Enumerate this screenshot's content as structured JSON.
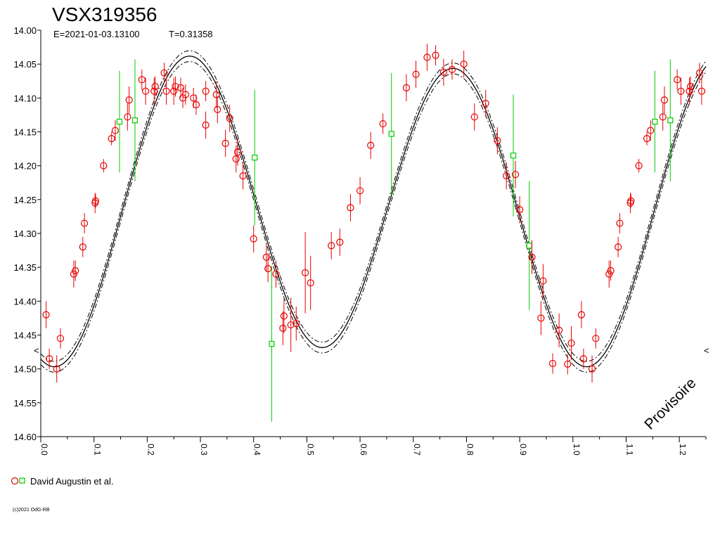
{
  "chart_data": {
    "type": "scatter",
    "title": "VSX319356",
    "epoch_label": "E=2021-01-03.13100",
    "period_label": "T=0.31358",
    "xlabel": "",
    "ylabel": "",
    "xlim": [
      0,
      1.25
    ],
    "ylim": [
      14.0,
      14.6
    ],
    "y_inverted": true,
    "grid": false,
    "x_ticks": [
      "0.0",
      "0.1",
      "0.2",
      "0.3",
      "0.4",
      "0.5",
      "0.6",
      "0.7",
      "0.8",
      "0.9",
      "1.0",
      "1.1",
      "1.2"
    ],
    "y_ticks": [
      "14.00",
      "14.05",
      "14.10",
      "14.15",
      "14.20",
      "14.25",
      "14.30",
      "14.35",
      "14.40",
      "14.45",
      "14.50",
      "14.55",
      "14.60"
    ],
    "legend": {
      "label": "David Augustin et al.",
      "placement": "bottom-left"
    },
    "annotation": "Provisoire",
    "copyright": "(c)2021 OdG-RB",
    "edge_markers": [
      "<",
      "<"
    ],
    "colors": {
      "red_series": "#e60000",
      "green_series": "#00cc00",
      "fit": "#000000"
    },
    "fit_model": {
      "mean": 14.265,
      "cos1": 0.0155,
      "sin1": -0.0065,
      "cos2": 0.205,
      "sin2": 0.073
    },
    "series": [
      {
        "marker": "circle",
        "color": "#e60000",
        "points": [
          [
            0.01,
            14.42,
            0.02
          ],
          [
            0.016,
            14.485,
            0.015
          ],
          [
            0.03,
            14.5,
            0.02
          ],
          [
            0.037,
            14.455,
            0.015
          ],
          [
            0.062,
            14.36,
            0.02
          ],
          [
            0.065,
            14.355,
            0.015
          ],
          [
            0.079,
            14.32,
            0.015
          ],
          [
            0.082,
            14.285,
            0.015
          ],
          [
            0.102,
            14.255,
            0.015
          ],
          [
            0.103,
            14.252,
            0.01
          ],
          [
            0.118,
            14.2,
            0.01
          ],
          [
            0.133,
            14.16,
            0.01
          ],
          [
            0.14,
            14.148,
            0.015
          ],
          [
            0.163,
            14.128,
            0.02
          ],
          [
            0.166,
            14.103,
            0.02
          ],
          [
            0.19,
            14.073,
            0.015
          ],
          [
            0.197,
            14.09,
            0.02
          ],
          [
            0.213,
            14.09,
            0.02
          ],
          [
            0.215,
            14.083,
            0.015
          ],
          [
            0.232,
            14.063,
            0.015
          ],
          [
            0.236,
            14.09,
            0.02
          ],
          [
            0.25,
            14.09,
            0.02
          ],
          [
            0.253,
            14.083,
            0.015
          ],
          [
            0.263,
            14.085,
            0.015
          ],
          [
            0.267,
            14.1,
            0.015
          ],
          [
            0.272,
            14.095,
            0.015
          ],
          [
            0.287,
            14.1,
            0.015
          ],
          [
            0.292,
            14.11,
            0.015
          ],
          [
            0.31,
            14.14,
            0.02
          ],
          [
            0.31,
            14.09,
            0.015
          ],
          [
            0.33,
            14.095,
            0.02
          ],
          [
            0.332,
            14.117,
            0.02
          ],
          [
            0.347,
            14.167,
            0.02
          ],
          [
            0.355,
            14.13,
            0.02
          ],
          [
            0.367,
            14.19,
            0.02
          ],
          [
            0.37,
            14.18,
            0.02
          ],
          [
            0.38,
            14.215,
            0.02
          ],
          [
            0.4,
            14.308,
            0.02
          ],
          [
            0.424,
            14.335,
            0.02
          ],
          [
            0.427,
            14.352,
            0.02
          ],
          [
            0.442,
            14.36,
            0.02
          ],
          [
            0.455,
            14.44,
            0.025
          ],
          [
            0.457,
            14.422,
            0.025
          ],
          [
            0.47,
            14.435,
            0.04
          ],
          [
            0.48,
            14.433,
            0.025
          ],
          [
            0.497,
            14.358,
            0.06
          ],
          [
            0.507,
            14.373,
            0.04
          ],
          [
            0.546,
            14.318,
            0.02
          ],
          [
            0.562,
            14.313,
            0.02
          ],
          [
            0.582,
            14.262,
            0.02
          ],
          [
            0.6,
            14.237,
            0.02
          ],
          [
            0.62,
            14.17,
            0.02
          ],
          [
            0.643,
            14.138,
            0.015
          ],
          [
            0.687,
            14.085,
            0.02
          ],
          [
            0.705,
            14.065,
            0.02
          ],
          [
            0.726,
            14.04,
            0.02
          ],
          [
            0.742,
            14.037,
            0.015
          ],
          [
            0.757,
            14.062,
            0.02
          ],
          [
            0.773,
            14.058,
            0.015
          ],
          [
            0.795,
            14.05,
            0.02
          ],
          [
            0.815,
            14.128,
            0.02
          ],
          [
            0.836,
            14.108,
            0.02
          ],
          [
            0.858,
            14.163,
            0.02
          ],
          [
            0.875,
            14.215,
            0.02
          ],
          [
            0.892,
            14.213,
            0.02
          ],
          [
            0.9,
            14.265,
            0.02
          ],
          [
            0.923,
            14.335,
            0.025
          ],
          [
            0.94,
            14.425,
            0.025
          ],
          [
            0.944,
            14.37,
            0.025
          ],
          [
            0.962,
            14.492,
            0.015
          ],
          [
            0.974,
            14.443,
            0.025
          ],
          [
            0.99,
            14.493,
            0.015
          ],
          [
            0.997,
            14.462,
            0.025
          ],
          [
            1.016,
            14.42,
            0.02
          ],
          [
            1.02,
            14.485,
            0.015
          ],
          [
            1.036,
            14.5,
            0.02
          ],
          [
            1.043,
            14.455,
            0.015
          ],
          [
            1.068,
            14.36,
            0.02
          ],
          [
            1.071,
            14.355,
            0.015
          ],
          [
            1.085,
            14.32,
            0.015
          ],
          [
            1.088,
            14.285,
            0.015
          ],
          [
            1.108,
            14.255,
            0.015
          ],
          [
            1.109,
            14.252,
            0.01
          ],
          [
            1.124,
            14.2,
            0.01
          ],
          [
            1.139,
            14.16,
            0.01
          ],
          [
            1.146,
            14.148,
            0.015
          ],
          [
            1.169,
            14.128,
            0.02
          ],
          [
            1.172,
            14.103,
            0.02
          ],
          [
            1.196,
            14.073,
            0.015
          ],
          [
            1.203,
            14.09,
            0.02
          ],
          [
            1.219,
            14.09,
            0.02
          ],
          [
            1.221,
            14.083,
            0.015
          ],
          [
            1.238,
            14.063,
            0.015
          ],
          [
            1.242,
            14.09,
            0.02
          ]
        ]
      },
      {
        "marker": "square",
        "color": "#00cc00",
        "points": [
          [
            0.148,
            14.135,
            0.075
          ],
          [
            0.177,
            14.133,
            0.09
          ],
          [
            0.402,
            14.188,
            0.1
          ],
          [
            0.434,
            14.463,
            0.115
          ],
          [
            0.659,
            14.153,
            0.09
          ],
          [
            0.888,
            14.185,
            0.09
          ],
          [
            0.918,
            14.318,
            0.095
          ],
          [
            1.154,
            14.135,
            0.075
          ],
          [
            1.183,
            14.133,
            0.09
          ]
        ]
      }
    ]
  }
}
